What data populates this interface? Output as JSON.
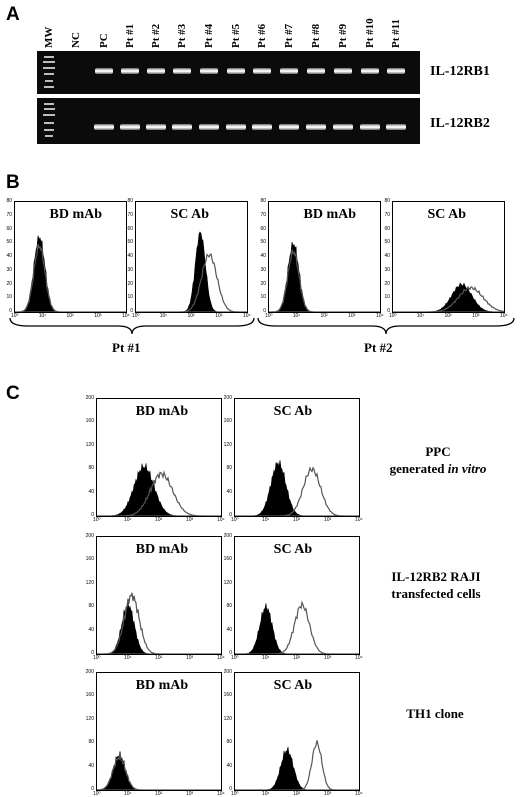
{
  "panel_a": {
    "letter": "A",
    "lanes": [
      "MW",
      "NC",
      "PC",
      "Pt #1",
      "Pt #2",
      "Pt #3",
      "Pt #4",
      "Pt #5",
      "Pt #6",
      "Pt #7",
      "Pt #8",
      "Pt #9",
      "Pt #10",
      "Pt #11"
    ],
    "genes": [
      "IL-12RB1",
      "IL-12RB2"
    ]
  },
  "panel_b": {
    "letter": "B",
    "patients": [
      {
        "label": "Pt #1",
        "plots": [
          {
            "title": "BD mAb"
          },
          {
            "title": "SC Ab"
          }
        ]
      },
      {
        "label": "Pt #2",
        "plots": [
          {
            "title": "BD mAb"
          },
          {
            "title": "SC Ab"
          }
        ]
      }
    ],
    "y_ticks": [
      "80",
      "70",
      "60",
      "50",
      "40",
      "30",
      "20",
      "10",
      "0"
    ]
  },
  "panel_c": {
    "letter": "C",
    "rows": [
      {
        "plots": [
          {
            "title": "BD mAb"
          },
          {
            "title": "SC Ab"
          }
        ],
        "condition_line1": "PPC",
        "condition_line2": "generated ",
        "condition_italic": "in vitro"
      },
      {
        "plots": [
          {
            "title": "BD mAb"
          },
          {
            "title": "SC Ab"
          }
        ],
        "condition_line1": "IL-12RB2 RAJI",
        "condition_line2": "transfected cells",
        "condition_italic": ""
      },
      {
        "plots": [
          {
            "title": "BD mAb"
          },
          {
            "title": "SC Ab"
          }
        ],
        "condition_line1": "TH1 clone",
        "condition_line2": "",
        "condition_italic": ""
      }
    ],
    "y_ticks": [
      "200",
      "160",
      "120",
      "80",
      "40",
      "0"
    ]
  },
  "x_ticks": [
    "10⁰",
    "10¹",
    "10²",
    "10³",
    "10⁴"
  ]
}
